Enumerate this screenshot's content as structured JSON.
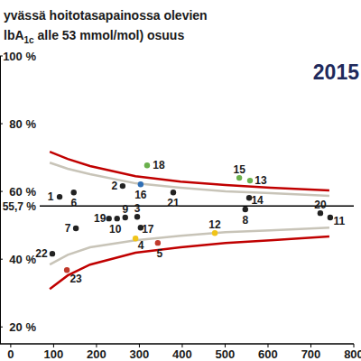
{
  "chart_data": {
    "type": "scatter",
    "title": "yvässä hoitotasapainossa olevien",
    "subtitle": {
      "text": "lbA",
      "sub": "1c",
      "rest": " alle 53 mmol/mol) osuus"
    },
    "annotation": "2015",
    "xlim": [
      -25,
      800
    ],
    "xticks": [
      0,
      100,
      200,
      300,
      400,
      500,
      600,
      700,
      800
    ],
    "ylim": [
      15,
      100
    ],
    "yticks": [
      {
        "value": 20,
        "label": "20 %"
      },
      {
        "value": 40,
        "label": "40 %"
      },
      {
        "value": 60,
        "label": "60 %"
      },
      {
        "value": 80,
        "label": "80 %"
      },
      {
        "value": 100,
        "label": "100 %"
      }
    ],
    "reference": {
      "value": 55.7,
      "label": "55,7 %"
    },
    "grid": false,
    "series": [
      {
        "type": "scatter",
        "marker": "circle",
        "x": [
          114,
          261,
          295,
          291,
          343,
          147,
          152,
          547,
          267,
          248,
          745,
          476,
          558,
          556,
          533,
          303,
          303,
          318,
          229,
          722,
          379,
          97,
          131
        ],
        "values": [
          58.4,
          61.6,
          52.5,
          46.1,
          44.8,
          59.7,
          49.1,
          54.7,
          52.3,
          52,
          52.3,
          47.7,
          63.2,
          58.1,
          64,
          62.1,
          49.3,
          67.7,
          52,
          53.6,
          59.7,
          41.6,
          36.8
        ],
        "point_labels": [
          "1",
          "2",
          "3",
          "4",
          "5",
          "6",
          "7",
          "8",
          "9",
          "10",
          "11",
          "12",
          "13",
          "14",
          "15",
          "16",
          "17",
          "18",
          "19",
          "20",
          "21",
          "22",
          "23"
        ],
        "colors": [
          "#222222",
          "#222222",
          "#222222",
          "#f0c419",
          "#c0392b",
          "#222222",
          "#222222",
          "#222222",
          "#222222",
          "#222222",
          "#222222",
          "#f0c419",
          "#6ab04c",
          "#222222",
          "#6ab04c",
          "#2f6fb5",
          "#222222",
          "#6ab04c",
          "#222222",
          "#222222",
          "#222222",
          "#222222",
          "#c0392b"
        ]
      },
      {
        "type": "line",
        "line_style": "solid",
        "color": "#c00000",
        "x": [
          91,
          133,
          185,
          291,
          396,
          501,
          606,
          743
        ],
        "values": [
          71.7,
          69.6,
          67.5,
          64.5,
          62.9,
          61.9,
          61.1,
          60.3
        ]
      },
      {
        "type": "line",
        "line_style": "solid",
        "color": "#c8c4b8",
        "x": [
          91,
          133,
          185,
          291,
          396,
          501,
          606,
          743
        ],
        "values": [
          68.5,
          66.7,
          65.1,
          62.4,
          61.1,
          60,
          59.5,
          58.7
        ]
      },
      {
        "type": "line",
        "line_style": "solid",
        "color": "#c8c4b8",
        "x": [
          91,
          133,
          185,
          291,
          396,
          501,
          606,
          743
        ],
        "values": [
          38.4,
          41.3,
          43.5,
          45.6,
          46.9,
          48,
          48.5,
          49.3
        ]
      },
      {
        "type": "line",
        "line_style": "solid",
        "color": "#c00000",
        "x": [
          91,
          133,
          185,
          291,
          396,
          501,
          606,
          743
        ],
        "values": [
          31.2,
          35.2,
          38.4,
          41.9,
          43.5,
          44.8,
          45.6,
          46.7
        ]
      }
    ]
  }
}
